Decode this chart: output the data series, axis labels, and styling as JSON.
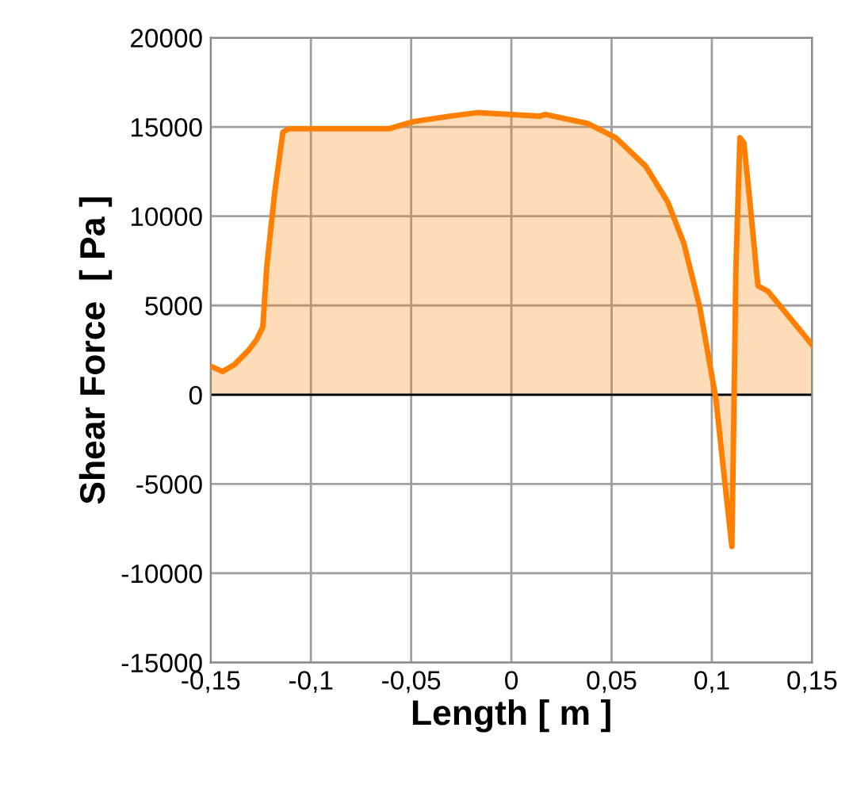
{
  "chart_data": {
    "type": "area",
    "xlabel": "Length [ m ]",
    "ylabel": "Shear Force  [ Pa ]",
    "xlim": [
      -0.15,
      0.15
    ],
    "ylim": [
      -15000,
      20000
    ],
    "xticks": [
      {
        "value": -0.15,
        "label": "-0,15"
      },
      {
        "value": -0.1,
        "label": "-0,1"
      },
      {
        "value": -0.05,
        "label": "-0,05"
      },
      0,
      {
        "value": 0.05,
        "label": "0,05"
      },
      {
        "value": 0.1,
        "label": "0,1"
      },
      {
        "value": 0.15,
        "label": "0,15"
      }
    ],
    "yticks": [
      -15000,
      -10000,
      -5000,
      0,
      5000,
      10000,
      15000,
      20000
    ],
    "grid": true,
    "line_style": "solid",
    "ref_lines": [
      {
        "axis": "y",
        "value": 0,
        "color": "#000000"
      }
    ],
    "series": [
      {
        "color": "#ff8000",
        "x": [
          -0.15,
          -0.144,
          -0.138,
          -0.131,
          -0.127,
          -0.124,
          -0.122,
          -0.118,
          -0.114,
          -0.111,
          -0.061,
          -0.049,
          -0.031,
          -0.017,
          0.014,
          0.017,
          0.038,
          0.052,
          0.067,
          0.078,
          0.086,
          0.094,
          0.102,
          0.106,
          0.11,
          0.111,
          0.112,
          0.114,
          0.116,
          0.119,
          0.123,
          0.128,
          0.139,
          0.15
        ],
        "values": [
          1600,
          1300,
          1700,
          2500,
          3100,
          3800,
          7200,
          11400,
          14700,
          14900,
          14900,
          15300,
          15600,
          15800,
          15600,
          15700,
          15200,
          14400,
          12800,
          10800,
          8500,
          4900,
          -200,
          -4400,
          -8500,
          -1100,
          7000,
          14400,
          14100,
          10800,
          6100,
          5800,
          4300,
          2800
        ]
      }
    ]
  }
}
